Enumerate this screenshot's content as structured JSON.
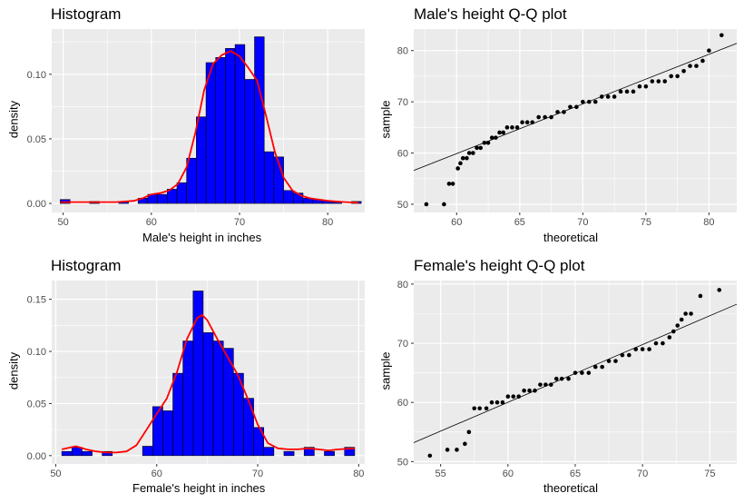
{
  "chart_data": [
    {
      "type": "bar",
      "subtype": "histogram-with-density",
      "title": "Histogram",
      "xlabel": "Male's height in inches",
      "ylabel": "density",
      "xlim": [
        48.7,
        84.2
      ],
      "ylim": [
        -0.007,
        0.135
      ],
      "xticks": [
        50,
        60,
        70,
        80
      ],
      "yticks": [
        0.0,
        0.05,
        0.1
      ],
      "ytick_labels": [
        "0.00",
        "0.05",
        "0.10"
      ],
      "bar_color": "#0000ff",
      "bar_edge_color": "#000000",
      "density_color": "#ff0000",
      "grid": true,
      "bins": [
        {
          "x0": 49.67,
          "x1": 50.78,
          "y": 0.003
        },
        {
          "x0": 53.0,
          "x1": 54.1,
          "y": 0.0015
        },
        {
          "x0": 56.3,
          "x1": 57.4,
          "y": 0.0015
        },
        {
          "x0": 58.5,
          "x1": 59.6,
          "y": 0.004
        },
        {
          "x0": 59.6,
          "x1": 60.7,
          "y": 0.007
        },
        {
          "x0": 60.7,
          "x1": 61.8,
          "y": 0.007
        },
        {
          "x0": 61.8,
          "x1": 62.9,
          "y": 0.011
        },
        {
          "x0": 62.9,
          "x1": 64.0,
          "y": 0.016
        },
        {
          "x0": 64.0,
          "x1": 65.1,
          "y": 0.035
        },
        {
          "x0": 65.1,
          "x1": 66.2,
          "y": 0.067
        },
        {
          "x0": 66.2,
          "x1": 67.3,
          "y": 0.109
        },
        {
          "x0": 67.3,
          "x1": 68.4,
          "y": 0.113
        },
        {
          "x0": 68.4,
          "x1": 69.5,
          "y": 0.12
        },
        {
          "x0": 69.5,
          "x1": 70.6,
          "y": 0.123
        },
        {
          "x0": 70.6,
          "x1": 71.7,
          "y": 0.096
        },
        {
          "x0": 71.7,
          "x1": 72.8,
          "y": 0.129
        },
        {
          "x0": 72.8,
          "x1": 73.9,
          "y": 0.04
        },
        {
          "x0": 73.9,
          "x1": 75.0,
          "y": 0.036
        },
        {
          "x0": 75.0,
          "x1": 76.1,
          "y": 0.01
        },
        {
          "x0": 76.1,
          "x1": 77.2,
          "y": 0.008
        },
        {
          "x0": 77.2,
          "x1": 78.3,
          "y": 0.004
        },
        {
          "x0": 78.3,
          "x1": 79.4,
          "y": 0.003
        },
        {
          "x0": 79.4,
          "x1": 80.5,
          "y": 0.002
        },
        {
          "x0": 80.5,
          "x1": 81.6,
          "y": 0.001
        },
        {
          "x0": 82.7,
          "x1": 83.8,
          "y": 0.0015
        }
      ],
      "density": {
        "x": [
          49.7,
          52,
          54,
          56,
          58,
          59,
          60,
          61,
          62,
          63,
          64,
          65,
          66,
          67,
          68,
          69,
          70,
          71,
          72,
          73,
          74,
          75,
          76,
          77,
          78,
          80,
          82,
          83.5
        ],
        "y": [
          0.001,
          0.001,
          0.001,
          0.001,
          0.002,
          0.004,
          0.007,
          0.008,
          0.01,
          0.015,
          0.028,
          0.055,
          0.088,
          0.108,
          0.115,
          0.118,
          0.114,
          0.105,
          0.095,
          0.068,
          0.04,
          0.02,
          0.01,
          0.006,
          0.004,
          0.002,
          0.001,
          0.0005
        ]
      }
    },
    {
      "type": "scatter",
      "subtype": "qq-plot",
      "title": "Male's height Q-Q plot",
      "xlabel": "theoretical",
      "ylabel": "sample",
      "xlim": [
        56.6,
        82.2
      ],
      "ylim": [
        48.4,
        84.2
      ],
      "xticks": [
        60,
        65,
        70,
        75,
        80
      ],
      "yticks": [
        50,
        60,
        70,
        80
      ],
      "point_color": "#000000",
      "line": {
        "x": [
          56.6,
          82.2
        ],
        "y": [
          56.6,
          81.4
        ]
      },
      "grid": true,
      "points": {
        "x": [
          57.6,
          59.0,
          59.4,
          59.7,
          60.1,
          60.3,
          60.5,
          60.8,
          61.0,
          61.3,
          61.6,
          61.9,
          62.2,
          62.5,
          62.8,
          63.1,
          63.4,
          63.7,
          64.0,
          64.4,
          64.8,
          65.2,
          65.6,
          66.0,
          66.5,
          67.0,
          67.5,
          68.0,
          68.5,
          69.0,
          69.5,
          70.0,
          70.5,
          71.0,
          71.5,
          72.0,
          72.5,
          73.0,
          73.5,
          74.0,
          74.5,
          75.0,
          75.5,
          76.0,
          76.5,
          77.0,
          77.5,
          78.0,
          78.5,
          79.0,
          79.5,
          80.0,
          81.0
        ],
        "y": [
          50,
          50,
          54,
          54,
          57,
          58,
          59,
          59,
          60,
          60,
          61,
          61,
          62,
          62,
          63,
          63,
          64,
          64,
          65,
          65,
          65,
          66,
          66,
          66,
          67,
          67,
          67,
          68,
          68,
          69,
          69,
          70,
          70,
          70,
          71,
          71,
          71,
          72,
          72,
          72,
          73,
          73,
          74,
          74,
          74,
          75,
          75,
          76,
          77,
          77,
          78,
          80,
          83
        ]
      }
    },
    {
      "type": "bar",
      "subtype": "histogram-with-density",
      "title": "Histogram",
      "xlabel": "Female's height in inches",
      "ylabel": "density",
      "xlim": [
        49.6,
        80.6
      ],
      "ylim": [
        -0.008,
        0.168
      ],
      "xticks": [
        50,
        60,
        70,
        80
      ],
      "yticks": [
        0.0,
        0.05,
        0.1,
        0.15
      ],
      "ytick_labels": [
        "0.00",
        "0.05",
        "0.10",
        "0.15"
      ],
      "bar_color": "#0000ff",
      "bar_edge_color": "#000000",
      "density_color": "#ff0000",
      "grid": true,
      "bins": [
        {
          "x0": 50.6,
          "x1": 51.6,
          "y": 0.004
        },
        {
          "x0": 51.6,
          "x1": 52.6,
          "y": 0.008
        },
        {
          "x0": 52.6,
          "x1": 53.6,
          "y": 0.004
        },
        {
          "x0": 54.6,
          "x1": 55.6,
          "y": 0.004
        },
        {
          "x0": 58.6,
          "x1": 59.6,
          "y": 0.009
        },
        {
          "x0": 59.6,
          "x1": 60.6,
          "y": 0.047
        },
        {
          "x0": 60.6,
          "x1": 61.6,
          "y": 0.043
        },
        {
          "x0": 61.6,
          "x1": 62.6,
          "y": 0.079
        },
        {
          "x0": 62.6,
          "x1": 63.6,
          "y": 0.11
        },
        {
          "x0": 63.6,
          "x1": 64.6,
          "y": 0.158
        },
        {
          "x0": 64.6,
          "x1": 65.6,
          "y": 0.118
        },
        {
          "x0": 65.6,
          "x1": 66.6,
          "y": 0.11
        },
        {
          "x0": 66.6,
          "x1": 67.6,
          "y": 0.103
        },
        {
          "x0": 67.6,
          "x1": 68.6,
          "y": 0.079
        },
        {
          "x0": 68.6,
          "x1": 69.6,
          "y": 0.055
        },
        {
          "x0": 69.6,
          "x1": 70.6,
          "y": 0.027
        },
        {
          "x0": 70.6,
          "x1": 71.6,
          "y": 0.008
        },
        {
          "x0": 72.6,
          "x1": 73.6,
          "y": 0.004
        },
        {
          "x0": 74.6,
          "x1": 75.6,
          "y": 0.008
        },
        {
          "x0": 76.6,
          "x1": 77.6,
          "y": 0.004
        },
        {
          "x0": 78.6,
          "x1": 79.6,
          "y": 0.008
        }
      ],
      "density": {
        "x": [
          50.6,
          52,
          53,
          54,
          55,
          56,
          57,
          58,
          59,
          60,
          61,
          62,
          63,
          64,
          64.5,
          65,
          66,
          67,
          68,
          69,
          70,
          71,
          72,
          73,
          74,
          75,
          76,
          77,
          78,
          79.6
        ],
        "y": [
          0.006,
          0.009,
          0.006,
          0.004,
          0.003,
          0.003,
          0.004,
          0.01,
          0.025,
          0.04,
          0.055,
          0.08,
          0.112,
          0.132,
          0.135,
          0.13,
          0.112,
          0.095,
          0.078,
          0.055,
          0.03,
          0.012,
          0.007,
          0.006,
          0.006,
          0.007,
          0.006,
          0.005,
          0.006,
          0.007
        ]
      }
    },
    {
      "type": "scatter",
      "subtype": "qq-plot",
      "title": "Female's height Q-Q plot",
      "xlabel": "theoretical",
      "ylabel": "sample",
      "xlim": [
        53.0,
        77.0
      ],
      "ylim": [
        49.6,
        80.6
      ],
      "xticks": [
        55,
        60,
        65,
        70,
        75
      ],
      "yticks": [
        50,
        60,
        70,
        80
      ],
      "point_color": "#000000",
      "line": {
        "x": [
          53.0,
          77.0
        ],
        "y": [
          53.2,
          76.6
        ]
      },
      "grid": true,
      "points": {
        "x": [
          54.2,
          55.5,
          56.2,
          56.8,
          57.1,
          57.5,
          57.9,
          58.4,
          58.8,
          59.2,
          59.6,
          60.0,
          60.4,
          60.8,
          61.2,
          61.6,
          62.0,
          62.4,
          62.8,
          63.2,
          63.6,
          64.0,
          64.5,
          65.0,
          65.5,
          66.0,
          66.5,
          67.0,
          67.5,
          68.0,
          68.5,
          69.0,
          69.5,
          70.0,
          70.5,
          71.0,
          71.5,
          72.0,
          72.3,
          72.6,
          72.9,
          73.2,
          73.6,
          74.3,
          75.7
        ],
        "y": [
          51,
          52,
          52,
          53,
          55,
          59,
          59,
          59,
          60,
          60,
          60,
          61,
          61,
          61,
          62,
          62,
          62,
          63,
          63,
          63,
          64,
          64,
          64,
          65,
          65,
          65,
          66,
          66,
          67,
          67,
          68,
          68,
          69,
          69,
          69,
          70,
          70,
          71,
          72,
          73,
          74,
          75,
          75,
          78,
          79
        ]
      }
    }
  ]
}
